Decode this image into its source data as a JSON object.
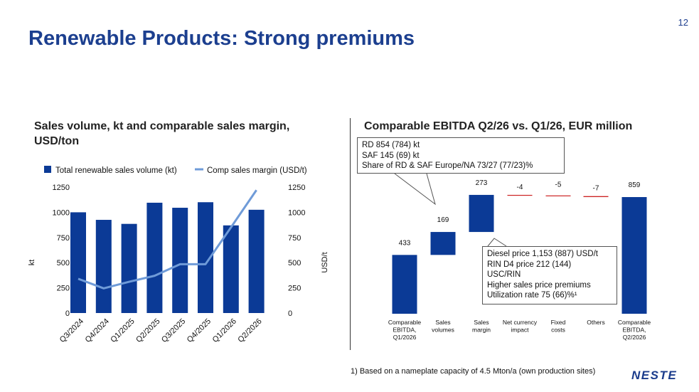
{
  "slide": {
    "page_number": "12",
    "title": "Renewable Products: Strong premiums",
    "footnote": "1) Based on a nameplate capacity of 4.5 Mton/a (own production sites)",
    "logo": "NESTE"
  },
  "colors": {
    "title_blue": "#1c3f8f",
    "bar_blue": "#0b3a96",
    "line_blue": "#6f9bd8",
    "small_bar_red": "#cc2222"
  },
  "left_chart": {
    "title": "Sales volume, kt and comparable sales margin, USD/ton",
    "legend": {
      "bar_label": "Total renewable sales volume (kt)",
      "line_label": "Comp sales margin (USD/t)"
    },
    "left_axis_label": "kt",
    "right_axis_label": "USD/t",
    "tick_labels": [
      "0",
      "250",
      "500",
      "750",
      "1000",
      "1250"
    ]
  },
  "right_chart": {
    "title": "Comparable EBITDA Q2/26 vs. Q1/26, EUR million",
    "callout_top": [
      "RD 854 (784) kt",
      "SAF 145 (69) kt",
      "Share of RD & SAF Europe/NA 73/27 (77/23)%"
    ],
    "callout_bottom": [
      "Diesel price 1,153 (887) USD/t",
      "RIN D4 price 212 (144)",
      "USC/RIN",
      "Higher sales price premiums",
      "Utilization rate 75 (66)%¹"
    ]
  },
  "chart_data": [
    {
      "type": "bar",
      "categories": [
        "Q3/2024",
        "Q4/2024",
        "Q1/2025",
        "Q2/2025",
        "Q3/2025",
        "Q4/2025",
        "Q1/2026",
        "Q2/2026"
      ],
      "series": [
        {
          "name": "Total renewable sales volume (kt)",
          "type": "bar",
          "axis": "left",
          "values": [
            1000,
            925,
            885,
            1095,
            1045,
            1100,
            870,
            1025
          ]
        },
        {
          "name": "Comp sales margin (USD/t)",
          "type": "line",
          "axis": "right",
          "values": [
            340,
            245,
            310,
            370,
            485,
            485,
            850,
            1220
          ]
        }
      ],
      "ylabel": "kt",
      "y2label": "USD/t",
      "ylim": [
        0,
        1250
      ],
      "y2lim": [
        0,
        1250
      ],
      "yticks": [
        0,
        250,
        500,
        750,
        1000,
        1250
      ],
      "grid": false,
      "legend": "top"
    },
    {
      "type": "bar",
      "subtype": "waterfall",
      "categories": [
        "Comparable EBITDA, Q1/2026",
        "Sales volumes",
        "Sales margin",
        "Net currency impact",
        "Fixed costs",
        "Others",
        "Comparable EBITDA, Q2/2026"
      ],
      "values": [
        433,
        169,
        273,
        -4,
        -5,
        -7,
        859
      ],
      "labels": [
        "433",
        "169",
        "273",
        "-4",
        "-5",
        "-7",
        "859"
      ],
      "kinds": [
        "total",
        "delta",
        "delta",
        "delta",
        "delta",
        "delta",
        "total"
      ],
      "grid": false
    }
  ]
}
